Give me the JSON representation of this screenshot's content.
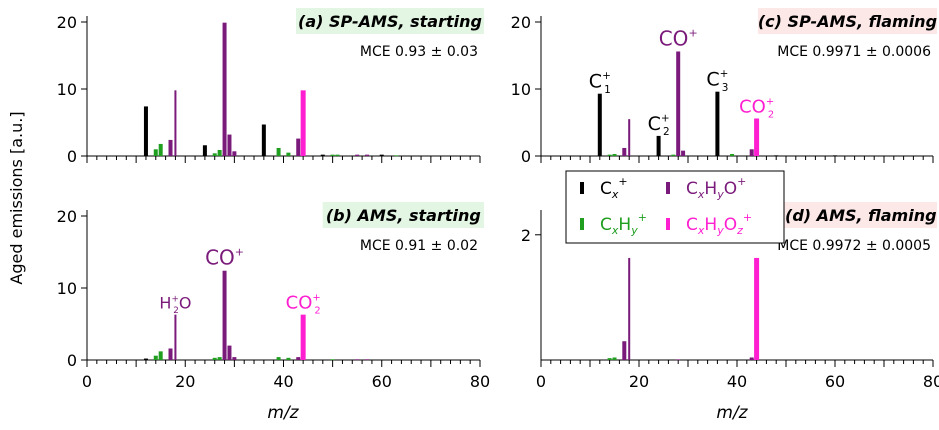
{
  "figure": {
    "ylabel": "Aged emissions [a.u.]",
    "xlabel": "m/z",
    "xlim": [
      0,
      80
    ],
    "xticks": [
      0,
      20,
      40,
      60,
      80
    ]
  },
  "legend": {
    "entries": [
      {
        "label": "C",
        "sub": "x",
        "sup": "+",
        "color": "#000000"
      },
      {
        "label": "C",
        "sub": "x",
        "mid": "H",
        "sub2": "y",
        "sup": "+",
        "color": "#1f9e1f"
      },
      {
        "label": "C",
        "sub": "x",
        "mid": "H",
        "sub2": "y",
        "end": "O",
        "sup": "+",
        "color": "#7a1a7a"
      },
      {
        "label": "C",
        "sub": "x",
        "mid": "H",
        "sub2": "y",
        "end": "O",
        "sub3": "z",
        "sup": "+",
        "color": "#ff1fd0"
      }
    ]
  },
  "colors": {
    "Cx": "#000000",
    "CxHy": "#1f9e1f",
    "CxHyO": "#7a1a7a",
    "CxHyOz": "#ff1fd0",
    "box_green": "#e3f6e3",
    "box_red": "#fde8e8"
  },
  "chart_data": [
    {
      "type": "bar",
      "panel": "a",
      "title": "(a) SP-AMS, starting",
      "mce": "MCE 0.93 ± 0.03",
      "ylim": [
        0,
        20
      ],
      "yticks": [
        0,
        10,
        20
      ],
      "bars": [
        {
          "mz": 12,
          "value": 7.4,
          "cls": "Cx"
        },
        {
          "mz": 14,
          "value": 1.0,
          "cls": "CxHy"
        },
        {
          "mz": 15,
          "value": 1.8,
          "cls": "CxHy"
        },
        {
          "mz": 17,
          "value": 2.4,
          "cls": "CxHyO"
        },
        {
          "mz": 18,
          "value": 9.8,
          "cls": "CxHyO"
        },
        {
          "mz": 24,
          "value": 1.6,
          "cls": "Cx"
        },
        {
          "mz": 26,
          "value": 0.4,
          "cls": "CxHy"
        },
        {
          "mz": 27,
          "value": 0.9,
          "cls": "CxHy"
        },
        {
          "mz": 28,
          "value": 19.9,
          "cls": "CxHyO"
        },
        {
          "mz": 29,
          "value": 3.2,
          "cls": "CxHyO"
        },
        {
          "mz": 30,
          "value": 0.7,
          "cls": "CxHyO"
        },
        {
          "mz": 36,
          "value": 4.7,
          "cls": "Cx"
        },
        {
          "mz": 39,
          "value": 1.2,
          "cls": "CxHy"
        },
        {
          "mz": 41,
          "value": 0.5,
          "cls": "CxHy"
        },
        {
          "mz": 43,
          "value": 2.6,
          "cls": "CxHyO"
        },
        {
          "mz": 44,
          "value": 9.8,
          "cls": "CxHyOz"
        },
        {
          "mz": 48,
          "value": 0.2,
          "cls": "Cx"
        },
        {
          "mz": 50,
          "value": 0.2,
          "cls": "CxHy"
        },
        {
          "mz": 51,
          "value": 0.2,
          "cls": "CxHy"
        },
        {
          "mz": 55,
          "value": 0.2,
          "cls": "CxHyO"
        },
        {
          "mz": 57,
          "value": 0.2,
          "cls": "CxHyO"
        },
        {
          "mz": 60,
          "value": 0.2,
          "cls": "Cx"
        },
        {
          "mz": 63,
          "value": 0.1,
          "cls": "CxHy"
        }
      ],
      "annotations": []
    },
    {
      "type": "bar",
      "panel": "b",
      "title": "(b) AMS, starting",
      "mce": "MCE 0.91 ± 0.02",
      "ylim": [
        0,
        20
      ],
      "yticks": [
        0,
        10,
        20
      ],
      "bars": [
        {
          "mz": 12,
          "value": 0.2,
          "cls": "Cx"
        },
        {
          "mz": 14,
          "value": 0.6,
          "cls": "CxHy"
        },
        {
          "mz": 15,
          "value": 1.2,
          "cls": "CxHy"
        },
        {
          "mz": 17,
          "value": 1.6,
          "cls": "CxHyO"
        },
        {
          "mz": 18,
          "value": 6.3,
          "cls": "CxHyO"
        },
        {
          "mz": 26,
          "value": 0.3,
          "cls": "CxHy"
        },
        {
          "mz": 27,
          "value": 0.4,
          "cls": "CxHy"
        },
        {
          "mz": 28,
          "value": 12.4,
          "cls": "CxHyO"
        },
        {
          "mz": 29,
          "value": 2.0,
          "cls": "CxHyO"
        },
        {
          "mz": 30,
          "value": 0.4,
          "cls": "CxHyO"
        },
        {
          "mz": 39,
          "value": 0.4,
          "cls": "CxHy"
        },
        {
          "mz": 41,
          "value": 0.3,
          "cls": "CxHy"
        },
        {
          "mz": 43,
          "value": 0.4,
          "cls": "CxHyO"
        },
        {
          "mz": 44,
          "value": 6.3,
          "cls": "CxHyOz"
        },
        {
          "mz": 50,
          "value": 0.1,
          "cls": "CxHy"
        },
        {
          "mz": 55,
          "value": 0.1,
          "cls": "CxHyO"
        },
        {
          "mz": 57,
          "value": 0.1,
          "cls": "CxHyO"
        }
      ],
      "annotations": [
        {
          "mz": 18,
          "value": 6.3,
          "text": "H",
          "sub": "2",
          "tail": "O",
          "sup": "+",
          "cls": "CxHyO",
          "size": 16
        },
        {
          "mz": 28,
          "value": 12.4,
          "text": "CO",
          "sup": "+",
          "cls": "CxHyO",
          "size": 20
        },
        {
          "mz": 44,
          "value": 6.3,
          "text": "CO",
          "sub": "2",
          "sup": "+",
          "cls": "CxHyOz",
          "size": 18
        }
      ]
    },
    {
      "type": "bar",
      "panel": "c",
      "title": "(c) SP-AMS, flaming",
      "mce": "MCE 0.9971 ± 0.0006",
      "ylim": [
        0,
        20
      ],
      "yticks": [
        0,
        10,
        20
      ],
      "bars": [
        {
          "mz": 12,
          "value": 9.3,
          "cls": "Cx"
        },
        {
          "mz": 14,
          "value": 0.2,
          "cls": "CxHy"
        },
        {
          "mz": 15,
          "value": 0.3,
          "cls": "CxHy"
        },
        {
          "mz": 17,
          "value": 1.2,
          "cls": "CxHyO"
        },
        {
          "mz": 18,
          "value": 5.5,
          "cls": "CxHyO"
        },
        {
          "mz": 24,
          "value": 3.0,
          "cls": "Cx"
        },
        {
          "mz": 27,
          "value": 0.2,
          "cls": "CxHy"
        },
        {
          "mz": 28,
          "value": 15.6,
          "cls": "CxHyO"
        },
        {
          "mz": 29,
          "value": 0.8,
          "cls": "CxHyO"
        },
        {
          "mz": 36,
          "value": 9.6,
          "cls": "Cx"
        },
        {
          "mz": 39,
          "value": 0.3,
          "cls": "CxHy"
        },
        {
          "mz": 43,
          "value": 1.0,
          "cls": "CxHyO"
        },
        {
          "mz": 44,
          "value": 5.6,
          "cls": "CxHyOz"
        },
        {
          "mz": 48,
          "value": 0.1,
          "cls": "Cx"
        },
        {
          "mz": 60,
          "value": 0.1,
          "cls": "Cx"
        }
      ],
      "annotations": [
        {
          "mz": 12,
          "value": 9.3,
          "text": "C",
          "sub": "1",
          "sup": "+",
          "cls": "Cx",
          "size": 19
        },
        {
          "mz": 24,
          "value": 3.0,
          "text": "C",
          "sub": "2",
          "sup": "+",
          "cls": "Cx",
          "size": 19
        },
        {
          "mz": 28,
          "value": 15.6,
          "text": "CO",
          "sup": "+",
          "cls": "CxHyO",
          "size": 20
        },
        {
          "mz": 36,
          "value": 9.6,
          "text": "C",
          "sub": "3",
          "sup": "+",
          "cls": "Cx",
          "size": 19
        },
        {
          "mz": 44,
          "value": 5.6,
          "text": "CO",
          "sub": "2",
          "sup": "+",
          "cls": "CxHyOz",
          "size": 18
        }
      ]
    },
    {
      "type": "bar",
      "panel": "d",
      "title": "(d) AMS, flaming",
      "mce": "MCE 0.9972 ± 0.0005",
      "ylim": [
        0,
        2.3
      ],
      "yticks": [
        2
      ],
      "bars": [
        {
          "mz": 14,
          "value": 0.03,
          "cls": "CxHy"
        },
        {
          "mz": 15,
          "value": 0.04,
          "cls": "CxHy"
        },
        {
          "mz": 17,
          "value": 0.3,
          "cls": "CxHyO"
        },
        {
          "mz": 18,
          "value": 1.63,
          "cls": "CxHyO"
        },
        {
          "mz": 28,
          "value": 0.01,
          "cls": "CxHyO"
        },
        {
          "mz": 43,
          "value": 0.04,
          "cls": "CxHyO"
        },
        {
          "mz": 44,
          "value": 1.63,
          "cls": "CxHyOz"
        }
      ],
      "annotations": []
    }
  ]
}
